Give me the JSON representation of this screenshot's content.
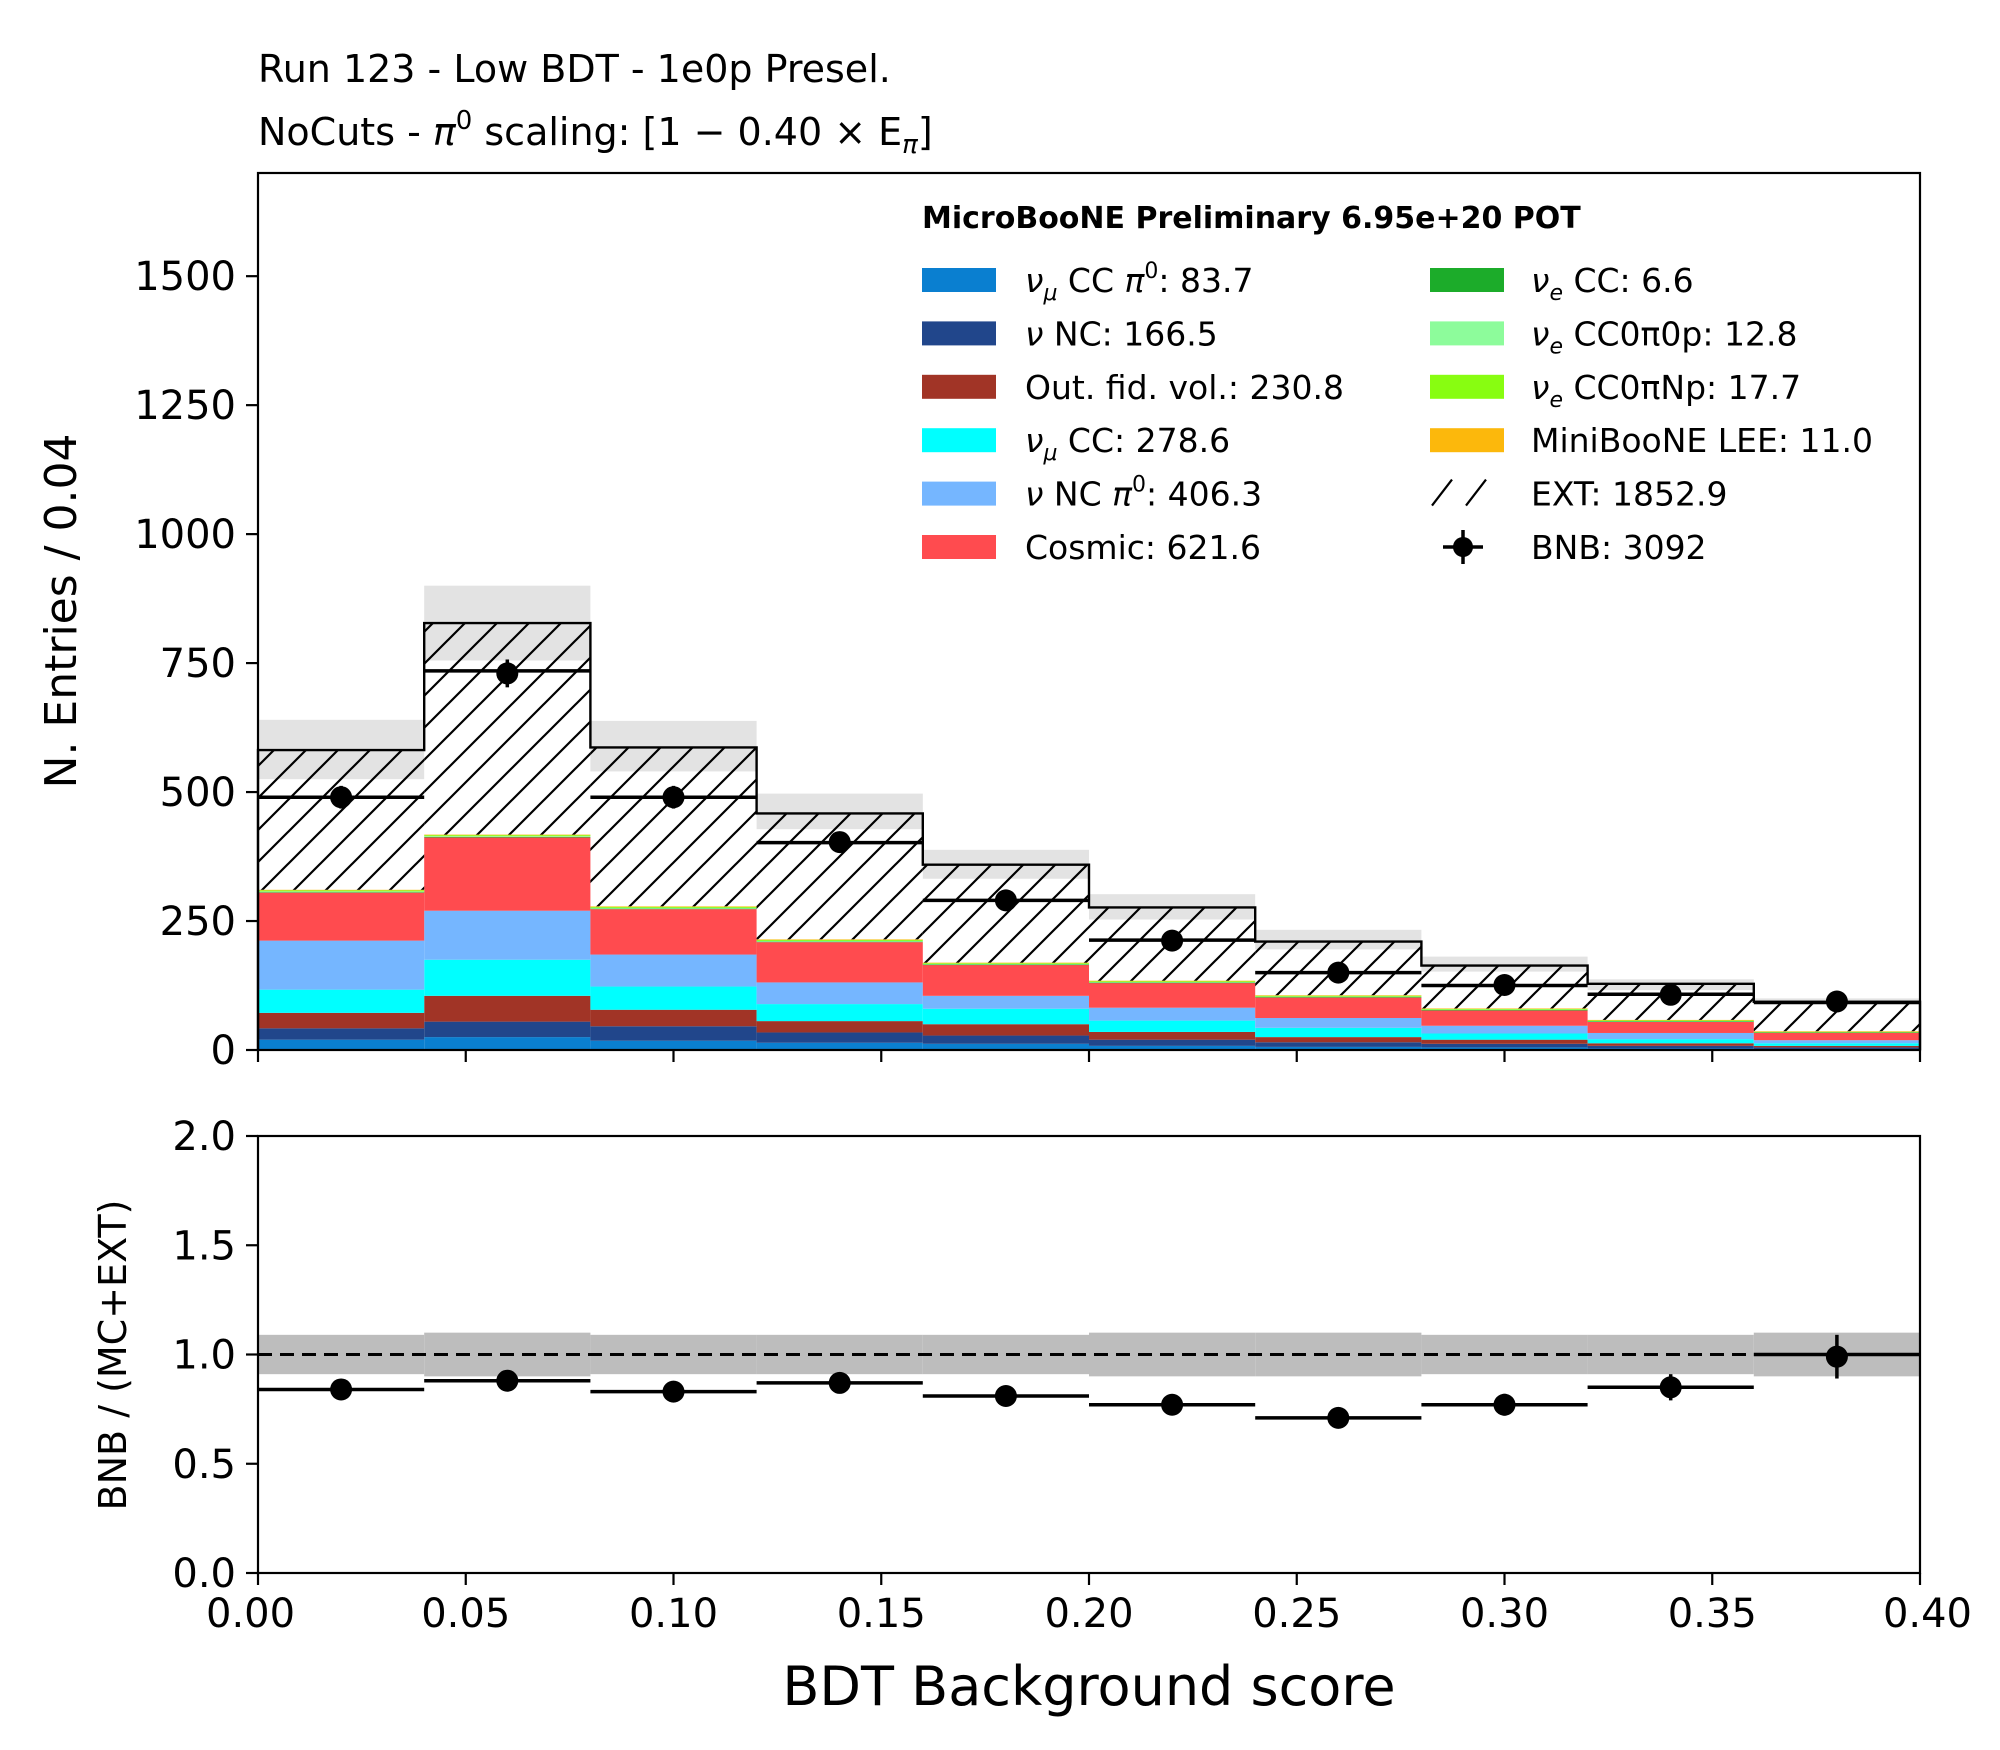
{
  "chart_data": [
    {
      "type": "bar",
      "subtype": "stacked-histogram",
      "title_line1": "Run 123 - Low BDT - 1e0p Presel.",
      "title_line2_prefix": "NoCuts - ",
      "title_line2_pi": "π",
      "title_line2_sup": "0",
      "title_line2_rest": " scaling: [1 − 0.40 × E",
      "title_line2_sub": "π",
      "title_line2_end": "]",
      "ylabel": "N. Entries / 0.04",
      "ylim": [
        0,
        1700
      ],
      "xlim": [
        0.0,
        0.4
      ],
      "yticks": [
        "0",
        "250",
        "500",
        "750",
        "1000",
        "1250",
        "1500"
      ],
      "ytick_values": [
        0,
        250,
        500,
        750,
        1000,
        1250,
        1500
      ],
      "bin_edges": [
        0.0,
        0.04,
        0.08,
        0.12,
        0.16,
        0.2,
        0.24,
        0.28,
        0.32,
        0.36,
        0.4
      ],
      "legend_title": "MicroBooNE Preliminary 6.95e+20 POT",
      "legend_placement": "top-right",
      "stack_order": [
        "numu_cc_pi0",
        "nu_nc",
        "outfv",
        "numu_cc",
        "nu_nc_pi0",
        "cosmic",
        "nue_cc",
        "nue_cc0pi0p",
        "nue_cc0piNp",
        "lee",
        "ext"
      ],
      "series": {
        "numu_cc_pi0": {
          "color": "#0a7fd0",
          "values": [
            20,
            25,
            18,
            14,
            12,
            8,
            6,
            5,
            3,
            2
          ]
        },
        "nu_nc": {
          "color": "#21468b",
          "values": [
            22,
            30,
            28,
            20,
            16,
            12,
            9,
            7,
            5,
            3
          ]
        },
        "outfv": {
          "color": "#a13426",
          "values": [
            30,
            50,
            32,
            22,
            22,
            15,
            10,
            8,
            5,
            3
          ]
        },
        "numu_cc": {
          "color": "#00ffff",
          "values": [
            45,
            70,
            45,
            33,
            30,
            22,
            18,
            12,
            8,
            5
          ]
        },
        "nu_nc_pi0": {
          "color": "#75b6ff",
          "values": [
            95,
            95,
            62,
            42,
            25,
            25,
            19,
            15,
            12,
            6
          ]
        },
        "cosmic": {
          "color": "#ff4b4f",
          "values": [
            93,
            142,
            88,
            78,
            60,
            48,
            40,
            30,
            22,
            15
          ]
        },
        "nue_cc": {
          "color": "#1cac2a",
          "values": [
            1,
            1,
            1,
            1,
            0.6,
            0.6,
            0.5,
            0.4,
            0.3,
            0.2
          ]
        },
        "nue_cc0pi0p": {
          "color": "#8dfc9b",
          "values": [
            1.5,
            1.5,
            1.5,
            1.5,
            1.2,
            1.2,
            1.2,
            1,
            1,
            0.6
          ]
        },
        "nue_cc0piNp": {
          "color": "#88fd11",
          "values": [
            2,
            2,
            2,
            2,
            1.5,
            1.5,
            1.5,
            1.2,
            1,
            0.6
          ]
        },
        "lee": {
          "color": "#fcb80c",
          "values": [
            1,
            1,
            1,
            1,
            1,
            1,
            1,
            1,
            1,
            1
          ]
        },
        "ext": {
          "color": "hatch",
          "values": [
            271,
            410,
            308,
            244,
            190,
            142,
            104,
            83,
            70,
            57
          ]
        }
      },
      "stat_band_low": [
        525,
        755,
        540,
        428,
        332,
        253,
        195,
        152,
        116,
        90
      ],
      "stat_band_high": [
        640,
        900,
        638,
        497,
        388,
        302,
        233,
        181,
        137,
        100
      ],
      "mc_hlines": [
        490,
        735,
        490,
        402,
        290,
        213,
        150,
        125,
        108,
        92
      ],
      "data_points": {
        "x": [
          0.02,
          0.06,
          0.1,
          0.14,
          0.18,
          0.22,
          0.26,
          0.3,
          0.34,
          0.38
        ],
        "y": [
          490,
          730,
          490,
          403,
          290,
          212,
          150,
          126,
          107,
          94
        ],
        "yerr": [
          22,
          27,
          22,
          20,
          17,
          15,
          12,
          11,
          10,
          10
        ]
      },
      "legend": [
        {
          "key": "numu_cc_pi0",
          "sym": "ν",
          "sub": "μ",
          "text": " CC ",
          "pi": "π",
          "sup": "0",
          "tail": ": 83.7"
        },
        {
          "key": "nu_nc",
          "sym": "ν",
          "sub": "",
          "text": " NC: 166.5",
          "pi": "",
          "sup": "",
          "tail": ""
        },
        {
          "key": "outfv",
          "sym": "",
          "sub": "",
          "text": "Out. fid. vol.: 230.8",
          "pi": "",
          "sup": "",
          "tail": ""
        },
        {
          "key": "numu_cc",
          "sym": "ν",
          "sub": "μ",
          "text": " CC: 278.6",
          "pi": "",
          "sup": "",
          "tail": ""
        },
        {
          "key": "nu_nc_pi0",
          "sym": "ν",
          "sub": "",
          "text": " NC ",
          "pi": "π",
          "sup": "0",
          "tail": ": 406.3"
        },
        {
          "key": "cosmic",
          "sym": "",
          "sub": "",
          "text": "Cosmic: 621.6",
          "pi": "",
          "sup": "",
          "tail": ""
        },
        {
          "key": "nue_cc",
          "sym": "ν",
          "sub": "e",
          "text": " CC: 6.6",
          "pi": "",
          "sup": "",
          "tail": ""
        },
        {
          "key": "nue_cc0pi0p",
          "sym": "ν",
          "sub": "e",
          "text": " CC0π0p: 12.8",
          "pi": "",
          "sup": "",
          "tail": ""
        },
        {
          "key": "nue_cc0piNp",
          "sym": "ν",
          "sub": "e",
          "text": " CC0πNp: 17.7",
          "pi": "",
          "sup": "",
          "tail": ""
        },
        {
          "key": "lee",
          "sym": "",
          "sub": "",
          "text": "MiniBooNE LEE: 11.0",
          "pi": "",
          "sup": "",
          "tail": ""
        },
        {
          "key": "ext",
          "sym": "",
          "sub": "",
          "text": "EXT: 1852.9",
          "pi": "",
          "sup": "",
          "tail": ""
        },
        {
          "key": "bnb",
          "sym": "",
          "sub": "",
          "text": "BNB: 3092",
          "pi": "",
          "sup": "",
          "tail": ""
        }
      ]
    },
    {
      "type": "scatter",
      "subtype": "ratio",
      "ylabel": "BNB / (MC+EXT)",
      "xlabel": "BDT Background score",
      "ylim": [
        0.0,
        2.0
      ],
      "xlim": [
        0.0,
        0.4
      ],
      "yticks": [
        "0.0",
        "0.5",
        "1.0",
        "1.5",
        "2.0"
      ],
      "ytick_values": [
        0.0,
        0.5,
        1.0,
        1.5,
        2.0
      ],
      "xticks": [
        "0.00",
        "0.05",
        "0.10",
        "0.15",
        "0.20",
        "0.25",
        "0.30",
        "0.35",
        "0.40"
      ],
      "xtick_values": [
        0.0,
        0.05,
        0.1,
        0.15,
        0.2,
        0.25,
        0.3,
        0.35,
        0.4
      ],
      "reference_line": 1.0,
      "band_low": [
        0.91,
        0.9,
        0.91,
        0.91,
        0.91,
        0.9,
        0.9,
        0.91,
        0.91,
        0.9
      ],
      "band_high": [
        1.09,
        1.1,
        1.09,
        1.09,
        1.09,
        1.1,
        1.1,
        1.09,
        1.09,
        1.1
      ],
      "hline_values": [
        0.84,
        0.88,
        0.83,
        0.87,
        0.81,
        0.77,
        0.71,
        0.77,
        0.85,
        1.0
      ],
      "x": [
        0.02,
        0.06,
        0.1,
        0.14,
        0.18,
        0.22,
        0.26,
        0.3,
        0.34,
        0.38
      ],
      "y": [
        0.84,
        0.88,
        0.83,
        0.87,
        0.81,
        0.77,
        0.71,
        0.77,
        0.85,
        0.99
      ],
      "yerr": [
        0.02,
        0.02,
        0.02,
        0.02,
        0.025,
        0.03,
        0.03,
        0.05,
        0.06,
        0.1
      ]
    }
  ]
}
